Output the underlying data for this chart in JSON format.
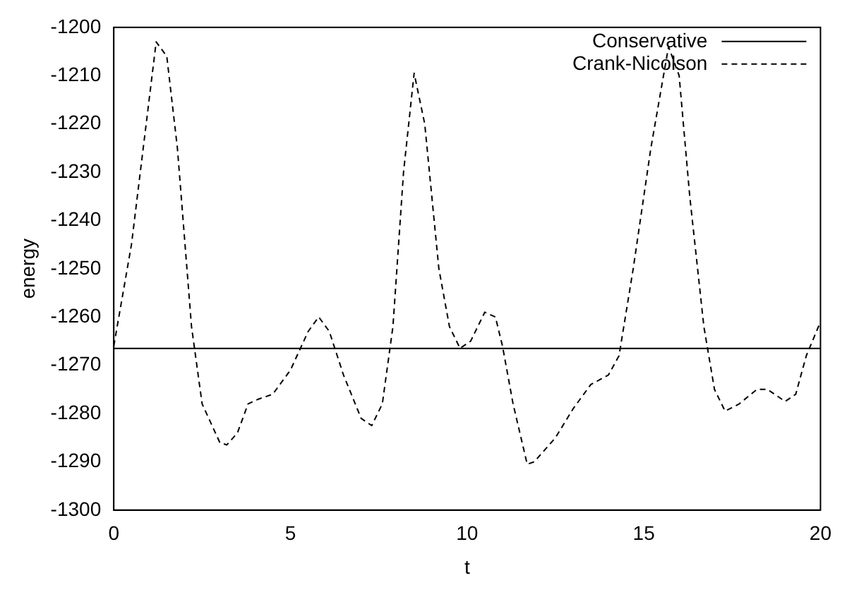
{
  "chart_data": {
    "type": "line",
    "xlabel": "t",
    "ylabel": "energy",
    "xlim": [
      0,
      20
    ],
    "xticks": [
      0,
      5,
      10,
      15,
      20
    ],
    "ylim": [
      -1300,
      -1200
    ],
    "yticks": [
      -1300,
      -1290,
      -1280,
      -1270,
      -1260,
      -1250,
      -1240,
      -1230,
      -1220,
      -1210,
      -1200
    ],
    "grid": false,
    "legend": "top right",
    "marker": "none",
    "series": [
      {
        "name": "Conservative",
        "color": "#000000",
        "line_style": "solid",
        "x": [
          0,
          20
        ],
        "values": [
          -1266.5,
          -1266.5
        ]
      },
      {
        "name": "Crank-Nicolson",
        "color": "#000000",
        "line_style": "dashed",
        "x": [
          0,
          0.5,
          1.0,
          1.2,
          1.5,
          1.8,
          2.2,
          2.5,
          3.0,
          3.2,
          3.5,
          3.8,
          4.1,
          4.5,
          5.0,
          5.5,
          5.8,
          6.1,
          6.5,
          7.0,
          7.3,
          7.6,
          7.9,
          8.2,
          8.5,
          8.8,
          9.2,
          9.5,
          9.8,
          10.1,
          10.5,
          10.8,
          11.0,
          11.3,
          11.7,
          11.9,
          12.5,
          13.0,
          13.5,
          14.0,
          14.3,
          14.7,
          15.2,
          15.7,
          16.0,
          16.3,
          16.7,
          17.0,
          17.3,
          17.7,
          18.2,
          18.5,
          19.0,
          19.3,
          19.6,
          20
        ],
        "values": [
          -1266,
          -1245,
          -1215,
          -1203,
          -1206,
          -1225,
          -1262,
          -1278,
          -1286,
          -1286.5,
          -1284,
          -1278,
          -1277,
          -1276,
          -1271,
          -1263,
          -1260,
          -1263,
          -1272,
          -1281,
          -1282.5,
          -1278,
          -1262,
          -1230,
          -1209.5,
          -1220,
          -1250,
          -1262,
          -1266.5,
          -1265,
          -1259,
          -1260,
          -1266,
          -1278,
          -1290.5,
          -1290,
          -1285,
          -1279,
          -1274,
          -1272,
          -1268,
          -1250,
          -1225,
          -1204,
          -1210,
          -1235,
          -1262,
          -1275,
          -1279.5,
          -1278,
          -1275,
          -1275,
          -1277.5,
          -1276,
          -1268,
          -1261
        ]
      }
    ]
  }
}
